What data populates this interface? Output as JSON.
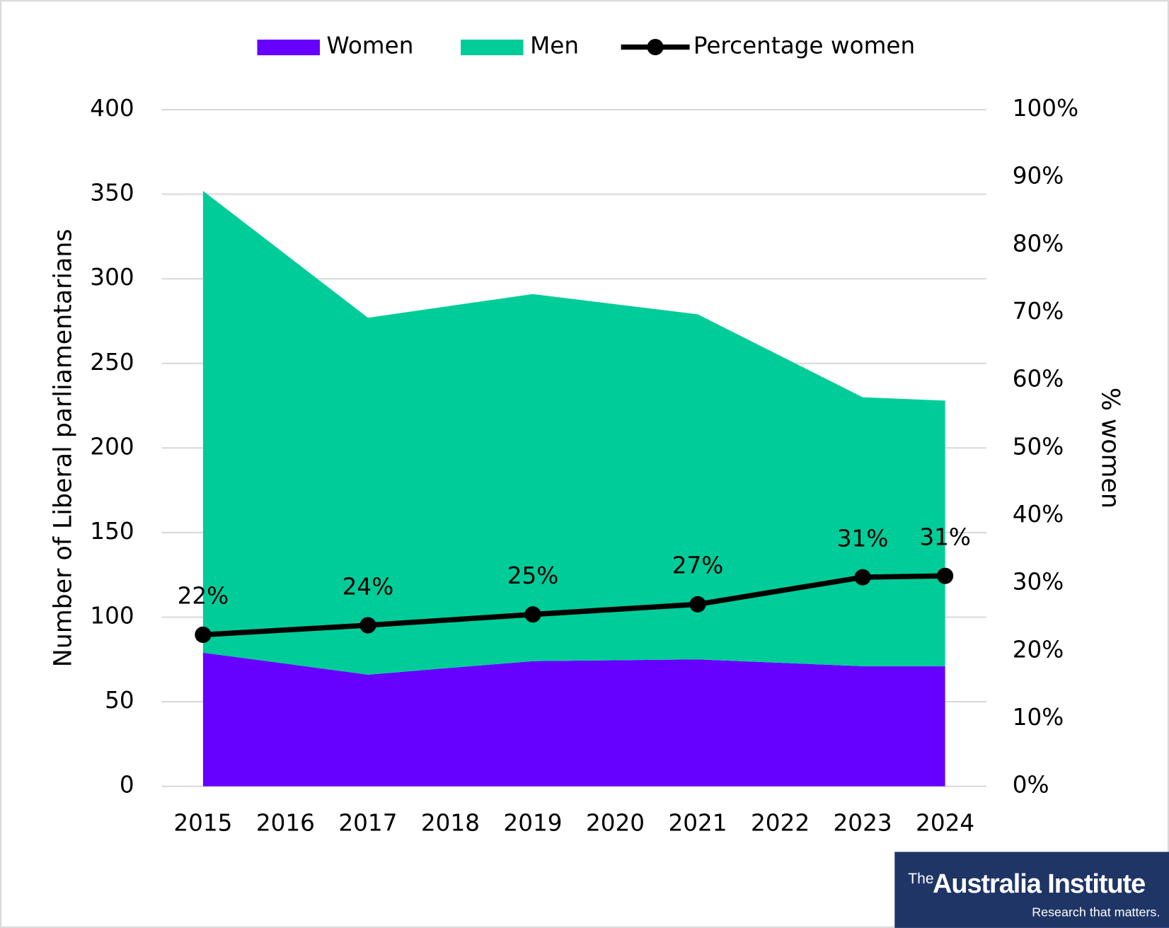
{
  "chart_data": {
    "type": "area",
    "x": [
      2015,
      2017,
      2019,
      2021,
      2023,
      2024
    ],
    "xlim": [
      2014.5,
      2024.5
    ],
    "xticks": [
      2015,
      2016,
      2017,
      2018,
      2019,
      2020,
      2021,
      2022,
      2023,
      2024
    ],
    "ylim": [
      0,
      400
    ],
    "yticks": [
      0,
      50,
      100,
      150,
      200,
      250,
      300,
      350,
      400
    ],
    "y2lim": [
      0,
      100
    ],
    "y2ticks": [
      {
        "value": 0,
        "label": "0%"
      },
      {
        "value": 10,
        "label": "10%"
      },
      {
        "value": 20,
        "label": "20%"
      },
      {
        "value": 30,
        "label": "30%"
      },
      {
        "value": 40,
        "label": "40%"
      },
      {
        "value": 50,
        "label": "50%"
      },
      {
        "value": 60,
        "label": "60%"
      },
      {
        "value": 70,
        "label": "70%"
      },
      {
        "value": 80,
        "label": "80%"
      },
      {
        "value": 90,
        "label": "90%"
      },
      {
        "value": 100,
        "label": "100%"
      }
    ],
    "ylabel": "Number of Liberal parliamentarians",
    "y2label": "% women",
    "grid": true,
    "legend": "top",
    "series": [
      {
        "name": "Women",
        "type": "area",
        "color": "#6600ff",
        "values": [
          79,
          66,
          74,
          75,
          71,
          71
        ]
      },
      {
        "name": "Men",
        "type": "area",
        "color": "#00cc99",
        "values": [
          273,
          211,
          217,
          204,
          159,
          157
        ]
      },
      {
        "name": "Percentage women",
        "type": "line",
        "axis": "y2",
        "color": "#000000",
        "values": [
          22.4,
          23.8,
          25.4,
          26.9,
          30.9,
          31.1
        ],
        "value_labels": [
          "22%",
          "24%",
          "25%",
          "27%",
          "31%",
          "31%"
        ]
      }
    ]
  },
  "logo": {
    "prefix": "The",
    "name": "Australia Institute",
    "tagline": "Research that matters."
  }
}
